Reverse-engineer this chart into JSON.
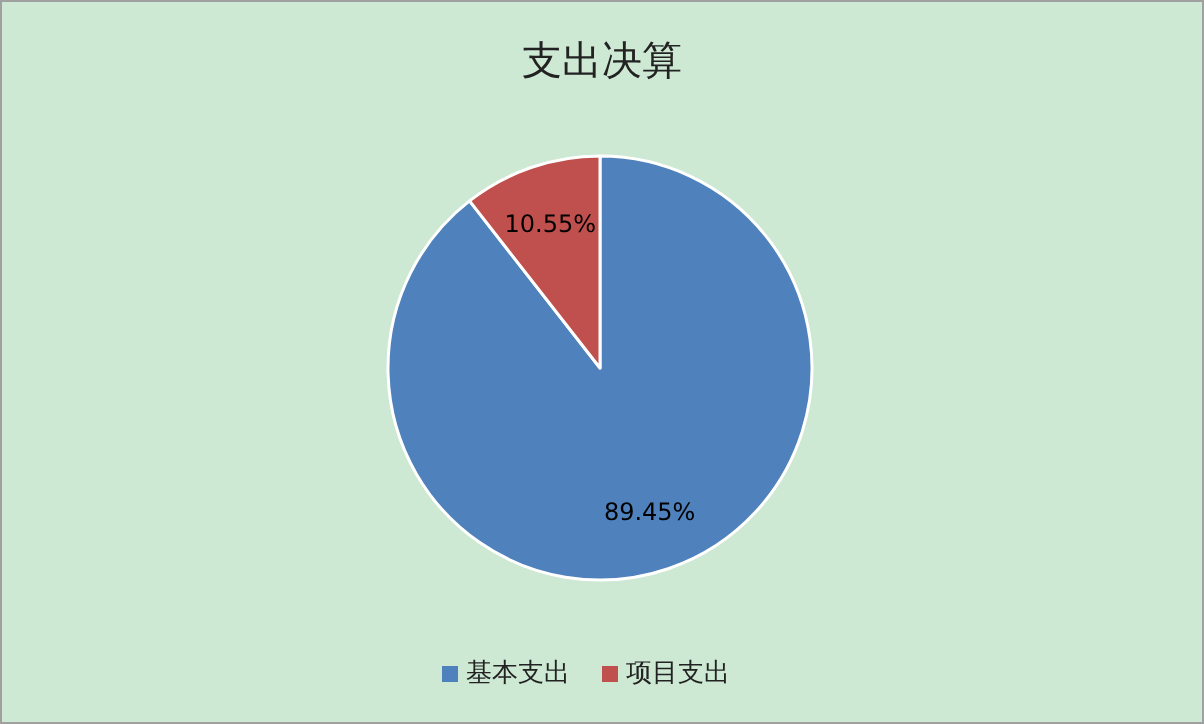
{
  "chart_data": {
    "type": "pie",
    "title": "支出决算",
    "categories": [
      "基本支出",
      "项目支出"
    ],
    "values": [
      89.45,
      10.55
    ],
    "colors": [
      "#4f81bd",
      "#c0504d"
    ],
    "value_labels": [
      "89.45%",
      "10.55%"
    ],
    "legend": "bottom"
  }
}
